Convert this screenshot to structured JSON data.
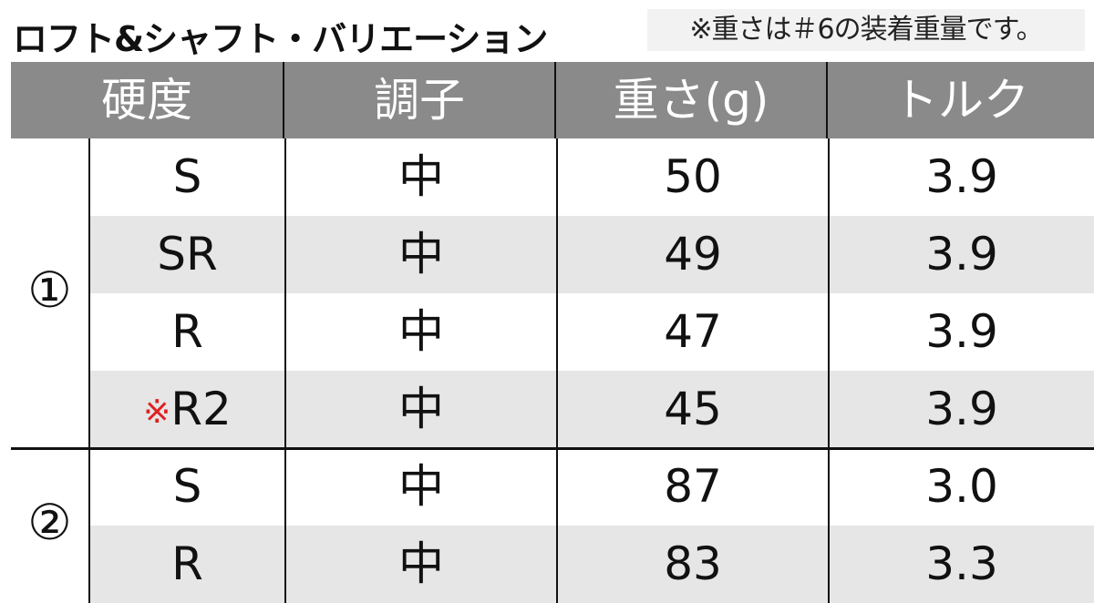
{
  "title": "ロフト&シャフト・バリエーション",
  "note": "※重さは＃6の装着重量です。",
  "headers": [
    "硬度",
    "調子",
    "重さ(g)",
    "トルク"
  ],
  "groups": [
    {
      "label": "①",
      "rows": [
        {
          "flex": "S",
          "kick": "中",
          "weight": "50",
          "torque": "3.9"
        },
        {
          "flex": "SR",
          "kick": "中",
          "weight": "49",
          "torque": "3.9"
        },
        {
          "flex": "R",
          "kick": "中",
          "weight": "47",
          "torque": "3.9"
        },
        {
          "mark": "※",
          "flex": "R2",
          "kick": "中",
          "weight": "45",
          "torque": "3.9"
        }
      ]
    },
    {
      "label": "②",
      "rows": [
        {
          "flex": "S",
          "kick": "中",
          "weight": "87",
          "torque": "3.0"
        },
        {
          "flex": "R",
          "kick": "中",
          "weight": "83",
          "torque": "3.3"
        }
      ]
    }
  ],
  "colors": {
    "header": "#8a8a8a",
    "alt_row": "#e6e6e6",
    "mark": "#e02020"
  }
}
